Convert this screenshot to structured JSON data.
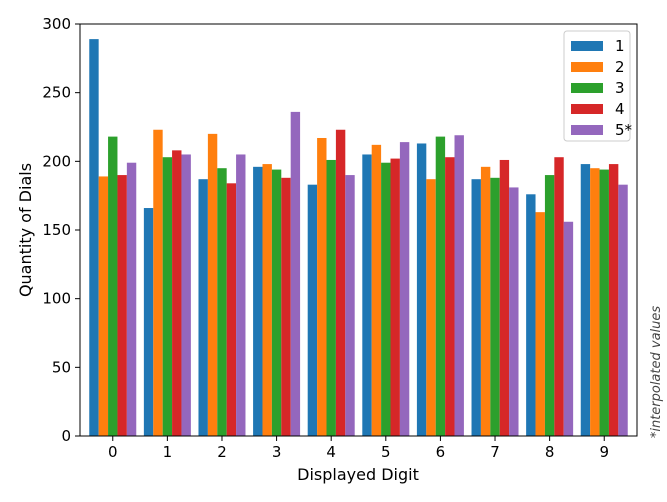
{
  "chart_data": {
    "type": "bar",
    "title": "",
    "xlabel": "Displayed Digit",
    "ylabel": "Quantity of Dials",
    "categories": [
      "0",
      "1",
      "2",
      "3",
      "4",
      "5",
      "6",
      "7",
      "8",
      "9"
    ],
    "ylim": [
      0,
      300
    ],
    "yticks": [
      0,
      50,
      100,
      150,
      200,
      250,
      300
    ],
    "grid": false,
    "legend_position": "upper right",
    "series": [
      {
        "name": "1",
        "color": "#1f77b4",
        "values": [
          289,
          166,
          187,
          196,
          183,
          205,
          213,
          187,
          176,
          198
        ]
      },
      {
        "name": "2",
        "color": "#ff7f0e",
        "values": [
          189,
          223,
          220,
          198,
          217,
          212,
          187,
          196,
          163,
          195
        ]
      },
      {
        "name": "3",
        "color": "#2ca02c",
        "values": [
          218,
          203,
          195,
          194,
          201,
          199,
          218,
          188,
          190,
          194
        ]
      },
      {
        "name": "4",
        "color": "#d62728",
        "values": [
          190,
          208,
          184,
          188,
          223,
          202,
          203,
          201,
          203,
          198
        ]
      },
      {
        "name": "5*",
        "color": "#9467bd",
        "values": [
          199,
          205,
          205,
          236,
          190,
          214,
          219,
          181,
          156,
          183
        ]
      }
    ],
    "annotations": [
      "*interpolated values"
    ]
  }
}
